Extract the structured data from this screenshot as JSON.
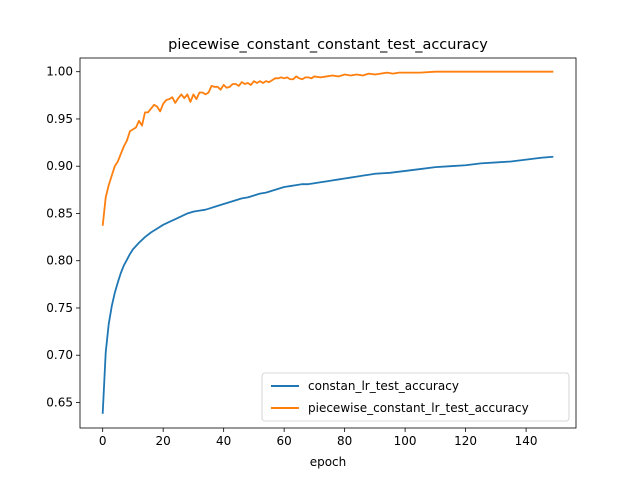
{
  "chart_data": {
    "type": "line",
    "title": "piecewise_constant_constant_test_accuracy",
    "xlabel": "epoch",
    "ylabel": "",
    "xlim": [
      -7.5,
      156.5
    ],
    "ylim": [
      0.623,
      1.0145
    ],
    "xticks": [
      0,
      20,
      40,
      60,
      80,
      100,
      120,
      140
    ],
    "xtick_labels": [
      "0",
      "20",
      "40",
      "60",
      "80",
      "100",
      "120",
      "140"
    ],
    "yticks": [
      0.65,
      0.7,
      0.75,
      0.8,
      0.85,
      0.9,
      0.95,
      1.0
    ],
    "ytick_labels": [
      "0.65",
      "0.70",
      "0.75",
      "0.80",
      "0.85",
      "0.90",
      "0.95",
      "1.00"
    ],
    "grid": false,
    "legend_position": "bottom-right",
    "series": [
      {
        "name": "constan_lr_test_accuracy",
        "color": "#1f77b4",
        "x": [
          0,
          1,
          2,
          3,
          4,
          5,
          6,
          7,
          8,
          9,
          10,
          12,
          14,
          16,
          18,
          20,
          22,
          24,
          26,
          28,
          30,
          32,
          34,
          36,
          38,
          40,
          42,
          44,
          46,
          48,
          50,
          52,
          54,
          56,
          58,
          60,
          62,
          64,
          66,
          68,
          70,
          72,
          74,
          76,
          78,
          80,
          82,
          84,
          86,
          88,
          90,
          95,
          100,
          105,
          110,
          115,
          120,
          125,
          130,
          135,
          140,
          145,
          149
        ],
        "values": [
          0.638,
          0.703,
          0.733,
          0.752,
          0.766,
          0.777,
          0.787,
          0.795,
          0.801,
          0.807,
          0.812,
          0.819,
          0.825,
          0.83,
          0.834,
          0.838,
          0.841,
          0.844,
          0.847,
          0.85,
          0.852,
          0.853,
          0.854,
          0.856,
          0.858,
          0.86,
          0.862,
          0.864,
          0.866,
          0.867,
          0.869,
          0.871,
          0.872,
          0.874,
          0.876,
          0.878,
          0.879,
          0.88,
          0.881,
          0.881,
          0.882,
          0.883,
          0.884,
          0.885,
          0.886,
          0.887,
          0.888,
          0.889,
          0.89,
          0.891,
          0.892,
          0.893,
          0.895,
          0.897,
          0.899,
          0.9,
          0.901,
          0.903,
          0.904,
          0.905,
          0.907,
          0.909,
          0.91
        ]
      },
      {
        "name": "piecewise_constant_lr_test_accuracy",
        "color": "#ff7f0e",
        "x": [
          0,
          1,
          2,
          3,
          4,
          5,
          6,
          7,
          8,
          9,
          10,
          11,
          12,
          13,
          14,
          15,
          16,
          17,
          18,
          19,
          20,
          21,
          22,
          23,
          24,
          25,
          26,
          27,
          28,
          29,
          30,
          31,
          32,
          33,
          34,
          35,
          36,
          37,
          38,
          39,
          40,
          41,
          42,
          43,
          44,
          45,
          46,
          47,
          48,
          49,
          50,
          51,
          52,
          53,
          54,
          55,
          56,
          57,
          58,
          59,
          60,
          61,
          62,
          63,
          64,
          65,
          66,
          67,
          68,
          69,
          70,
          72,
          74,
          76,
          78,
          80,
          82,
          84,
          86,
          88,
          90,
          92,
          94,
          96,
          98,
          100,
          105,
          110,
          115,
          120,
          130,
          140,
          149
        ],
        "values": [
          0.837,
          0.867,
          0.88,
          0.89,
          0.9,
          0.905,
          0.913,
          0.921,
          0.927,
          0.937,
          0.939,
          0.941,
          0.948,
          0.943,
          0.957,
          0.957,
          0.961,
          0.965,
          0.963,
          0.958,
          0.966,
          0.97,
          0.971,
          0.973,
          0.967,
          0.972,
          0.976,
          0.972,
          0.976,
          0.968,
          0.976,
          0.971,
          0.978,
          0.978,
          0.976,
          0.978,
          0.985,
          0.984,
          0.984,
          0.981,
          0.986,
          0.983,
          0.984,
          0.987,
          0.987,
          0.985,
          0.989,
          0.987,
          0.988,
          0.986,
          0.99,
          0.988,
          0.99,
          0.988,
          0.99,
          0.989,
          0.991,
          0.993,
          0.993,
          0.994,
          0.993,
          0.994,
          0.992,
          0.992,
          0.995,
          0.993,
          0.992,
          0.994,
          0.994,
          0.993,
          0.995,
          0.994,
          0.995,
          0.996,
          0.995,
          0.997,
          0.996,
          0.997,
          0.996,
          0.998,
          0.997,
          0.998,
          0.999,
          0.998,
          0.999,
          0.999,
          0.999,
          1.0,
          1.0,
          1.0,
          1.0,
          1.0,
          1.0
        ]
      }
    ]
  }
}
